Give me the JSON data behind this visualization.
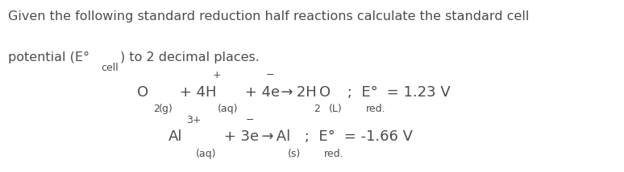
{
  "bg_color": "#ffffff",
  "text_color": "#4d4d4d",
  "title_line1": "Given the following standard reduction half reactions calculate the standard cell",
  "title_line2_a": "potential (E°",
  "title_line2_b": "cell",
  "title_line2_c": ") to 2 decimal places.",
  "title_fontsize": 11.5,
  "title_sub_fontsize": 9.0,
  "rxn_fontsize": 13.0,
  "rxn_sub_fontsize": 9.0
}
